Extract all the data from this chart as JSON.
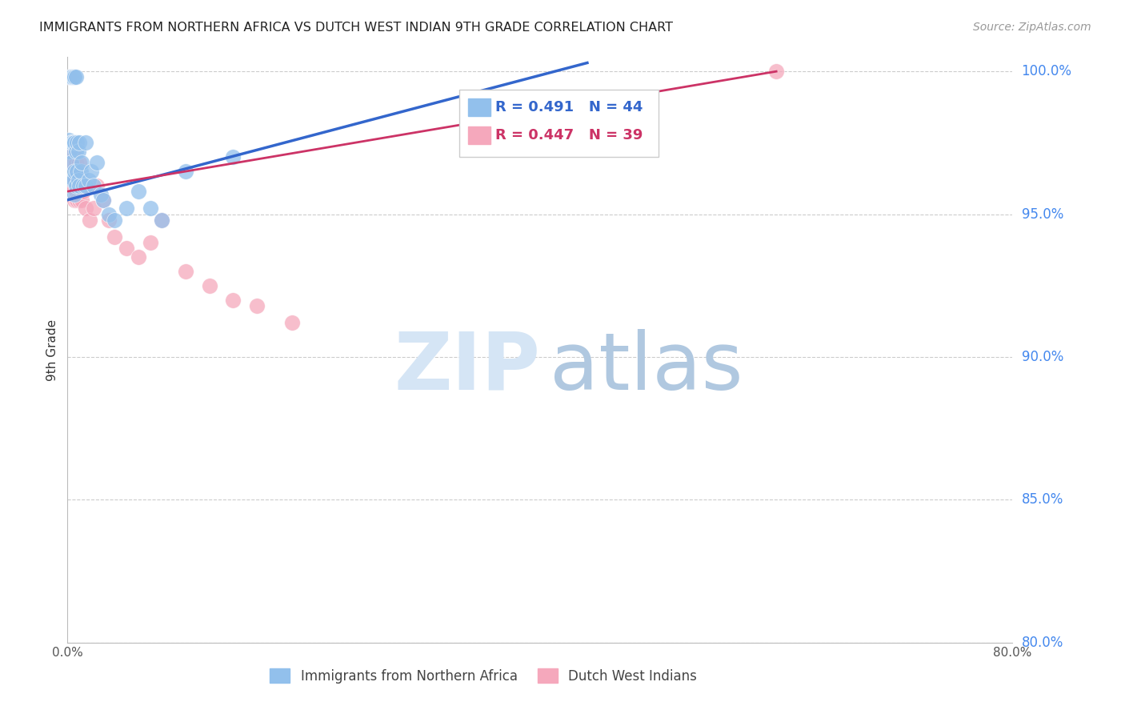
{
  "title": "IMMIGRANTS FROM NORTHERN AFRICA VS DUTCH WEST INDIAN 9TH GRADE CORRELATION CHART",
  "source": "Source: ZipAtlas.com",
  "ylabel": "9th Grade",
  "legend_labels": [
    "Immigrants from Northern Africa",
    "Dutch West Indians"
  ],
  "blue_R": 0.491,
  "blue_N": 44,
  "pink_R": 0.447,
  "pink_N": 39,
  "xlim": [
    0.0,
    0.8
  ],
  "ylim": [
    0.8,
    1.005
  ],
  "xticks": [
    0.0,
    0.1,
    0.2,
    0.3,
    0.4,
    0.5,
    0.6,
    0.7,
    0.8
  ],
  "xtick_labels": [
    "0.0%",
    "",
    "",
    "",
    "",
    "",
    "",
    "",
    "80.0%"
  ],
  "yticks": [
    0.8,
    0.85,
    0.9,
    0.95,
    1.0
  ],
  "ytick_labels": [
    "80.0%",
    "85.0%",
    "90.0%",
    "95.0%",
    "100.0%"
  ],
  "blue_color": "#92C0EC",
  "pink_color": "#F5A8BC",
  "blue_line_color": "#3366CC",
  "pink_line_color": "#CC3366",
  "grid_color": "#CCCCCC",
  "axis_color": "#BBBBBB",
  "right_label_color": "#4488EE",
  "watermark_zip_color": "#D5E5F5",
  "watermark_atlas_color": "#B0C8E0",
  "blue_x": [
    0.001,
    0.002,
    0.002,
    0.003,
    0.003,
    0.003,
    0.004,
    0.004,
    0.004,
    0.005,
    0.005,
    0.005,
    0.006,
    0.006,
    0.006,
    0.006,
    0.007,
    0.007,
    0.007,
    0.008,
    0.008,
    0.009,
    0.009,
    0.01,
    0.01,
    0.011,
    0.012,
    0.013,
    0.015,
    0.015,
    0.018,
    0.02,
    0.022,
    0.025,
    0.028,
    0.03,
    0.035,
    0.04,
    0.05,
    0.06,
    0.07,
    0.08,
    0.1,
    0.14
  ],
  "blue_y": [
    0.976,
    0.998,
    0.972,
    0.998,
    0.975,
    0.968,
    0.998,
    0.975,
    0.962,
    0.998,
    0.975,
    0.962,
    0.998,
    0.975,
    0.965,
    0.957,
    0.998,
    0.972,
    0.96,
    0.975,
    0.965,
    0.972,
    0.962,
    0.975,
    0.96,
    0.965,
    0.968,
    0.96,
    0.975,
    0.96,
    0.962,
    0.965,
    0.96,
    0.968,
    0.957,
    0.955,
    0.95,
    0.948,
    0.952,
    0.958,
    0.952,
    0.948,
    0.965,
    0.97
  ],
  "pink_x": [
    0.002,
    0.003,
    0.003,
    0.004,
    0.004,
    0.005,
    0.005,
    0.005,
    0.006,
    0.006,
    0.006,
    0.007,
    0.007,
    0.008,
    0.008,
    0.009,
    0.01,
    0.01,
    0.011,
    0.012,
    0.013,
    0.015,
    0.017,
    0.019,
    0.022,
    0.025,
    0.03,
    0.035,
    0.04,
    0.05,
    0.06,
    0.07,
    0.08,
    0.1,
    0.12,
    0.14,
    0.16,
    0.19,
    0.6
  ],
  "pink_y": [
    0.998,
    0.975,
    0.96,
    0.998,
    0.968,
    0.998,
    0.972,
    0.96,
    0.975,
    0.962,
    0.955,
    0.968,
    0.958,
    0.965,
    0.955,
    0.96,
    0.968,
    0.955,
    0.96,
    0.955,
    0.958,
    0.952,
    0.96,
    0.948,
    0.952,
    0.96,
    0.955,
    0.948,
    0.942,
    0.938,
    0.935,
    0.94,
    0.948,
    0.93,
    0.925,
    0.92,
    0.918,
    0.912,
    1.0
  ],
  "blue_line_x0": 0.0,
  "blue_line_x1": 0.44,
  "blue_line_y0": 0.955,
  "blue_line_y1": 1.003,
  "pink_line_x0": 0.0,
  "pink_line_x1": 0.6,
  "pink_line_y0": 0.958,
  "pink_line_y1": 1.0
}
